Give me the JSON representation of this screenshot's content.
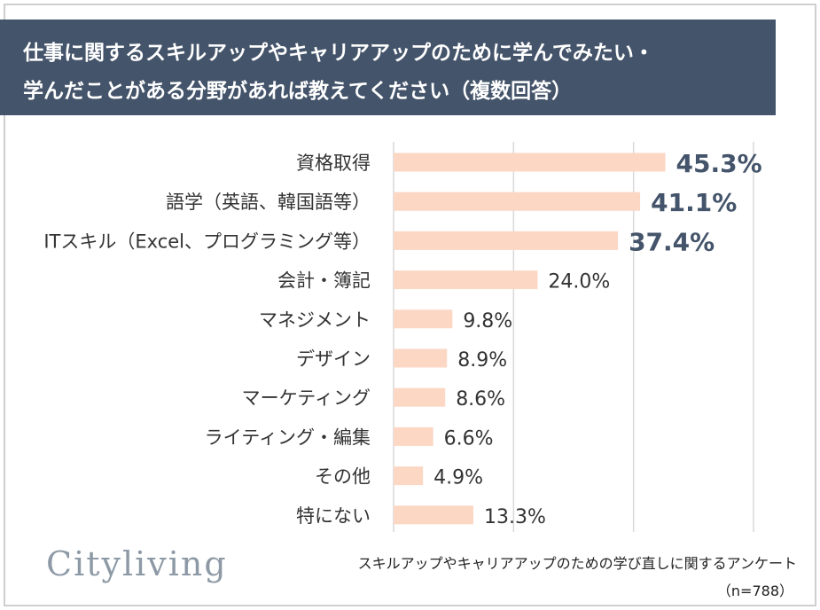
{
  "title": {
    "line1": "仕事に関するスキルアップやキャリアアップのために学んでみたい・",
    "line2": "学んだことがある分野があれば教えてください（複数回答）"
  },
  "colors": {
    "title_bg": "#44546a",
    "bar": "#fbd7c4",
    "highlight_label": "#44546a",
    "normal_label": "#333333",
    "grid": "#d9d9d9"
  },
  "chart_data": {
    "type": "bar",
    "orientation": "horizontal",
    "categories": [
      "資格取得",
      "語学（英語、韓国語等）",
      "ITスキル（Excel、プログラミング等）",
      "会計・簿記",
      "マネジメント",
      "デザイン",
      "マーケティング",
      "ライティング・編集",
      "その他",
      "特にない"
    ],
    "values": [
      45.3,
      41.1,
      37.4,
      24.0,
      9.8,
      8.9,
      8.6,
      6.6,
      4.9,
      13.3
    ],
    "value_labels": [
      "45.3%",
      "41.1%",
      "37.4%",
      "24.0%",
      "9.8%",
      "8.9%",
      "8.6%",
      "6.6%",
      "4.9%",
      "13.3%"
    ],
    "highlighted_top": 3,
    "xlim": [
      0,
      60
    ],
    "grid": true
  },
  "footer": {
    "logo": "Cityliving",
    "survey_name": "スキルアップやキャリアアップのための学び直しに関するアンケート",
    "sample_size": "（n=788）"
  }
}
